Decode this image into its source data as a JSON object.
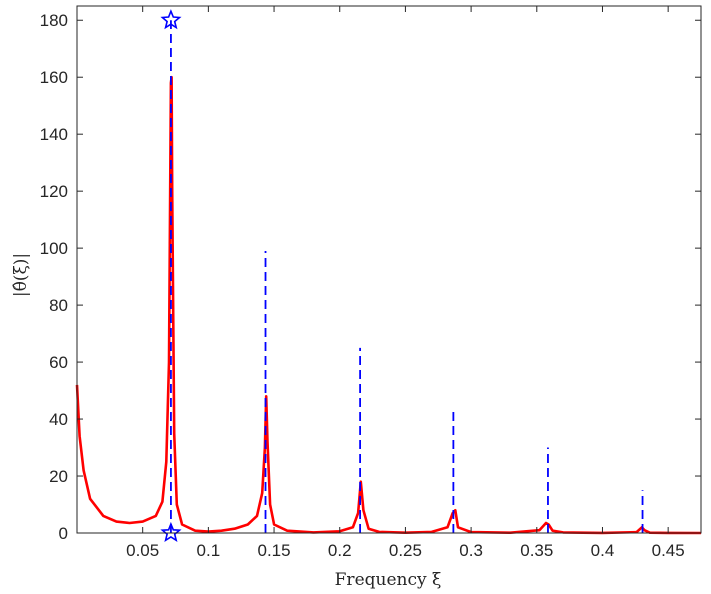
{
  "chart_data": {
    "type": "line",
    "title": "",
    "xlabel": "Frequency ξ",
    "ylabel": "|θ̂(ξ)|",
    "xlim": [
      0.0,
      0.475
    ],
    "ylim": [
      0,
      185
    ],
    "grid": false,
    "legend": null,
    "xticks": [
      0.05,
      0.1,
      0.15,
      0.2,
      0.25,
      0.3,
      0.35,
      0.4,
      0.45
    ],
    "xtick_labels": [
      "0.05",
      "0.1",
      "0.15",
      "0.2",
      "0.25",
      "0.3",
      "0.35",
      "0.4",
      "0.45"
    ],
    "yticks": [
      0,
      20,
      40,
      60,
      80,
      100,
      120,
      140,
      160,
      180
    ],
    "ytick_labels": [
      "0",
      "20",
      "40",
      "60",
      "80",
      "100",
      "120",
      "140",
      "160",
      "180"
    ],
    "series": [
      {
        "style": "solid",
        "color": "#ff0000",
        "x": [
          0.0,
          0.002,
          0.005,
          0.01,
          0.02,
          0.03,
          0.04,
          0.05,
          0.06,
          0.065,
          0.068,
          0.07,
          0.0715,
          0.072,
          0.0725,
          0.074,
          0.076,
          0.08,
          0.09,
          0.1,
          0.11,
          0.12,
          0.13,
          0.137,
          0.141,
          0.143,
          0.144,
          0.145,
          0.147,
          0.15,
          0.16,
          0.18,
          0.2,
          0.21,
          0.214,
          0.216,
          0.218,
          0.222,
          0.23,
          0.25,
          0.27,
          0.282,
          0.286,
          0.288,
          0.29,
          0.3,
          0.33,
          0.352,
          0.357,
          0.359,
          0.362,
          0.37,
          0.4,
          0.426,
          0.43,
          0.432,
          0.436,
          0.45,
          0.475
        ],
        "y": [
          52,
          34,
          22,
          12,
          6,
          4,
          3.5,
          4,
          6,
          11,
          25,
          60,
          158,
          160,
          120,
          35,
          10,
          3,
          0.8,
          0.5,
          0.8,
          1.5,
          3,
          6,
          14,
          30,
          48,
          32,
          10,
          3,
          0.8,
          0.2,
          0.6,
          2,
          7,
          18,
          8,
          1.5,
          0.4,
          0.1,
          0.4,
          2,
          7,
          8,
          2,
          0.3,
          0.1,
          1,
          3.5,
          3,
          0.8,
          0.2,
          0.05,
          0.3,
          2,
          1,
          0.1,
          0.02,
          0.0
        ]
      },
      {
        "style": "dashed-stems",
        "color": "#0000ff",
        "x": [
          0.0715,
          0.1435,
          0.2155,
          0.2865,
          0.3585,
          0.4305
        ],
        "y": [
          180,
          99,
          65,
          43,
          30,
          15
        ]
      }
    ],
    "markers": [
      {
        "shape": "star",
        "color": "#0000ff",
        "x": 0.0715,
        "y": 180
      },
      {
        "shape": "star",
        "color": "#0000ff",
        "x": 0.0715,
        "y": 0
      }
    ]
  }
}
